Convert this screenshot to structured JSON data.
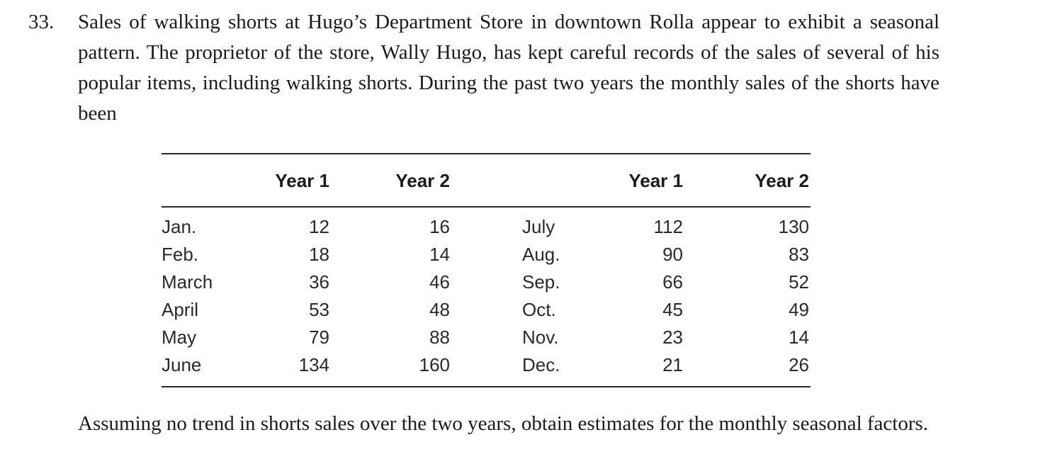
{
  "problem": {
    "number": "33.",
    "intro": "Sales of walking shorts at Hugo’s Department Store in downtown Rolla appear to exhibit a seasonal pattern. The proprietor of the store, Wally Hugo, has kept careful records of the sales of several of his popular items, including walking shorts. During the past two years the monthly sales of the shorts have been",
    "question": "Assuming no trend in shorts sales over the two years, obtain estimates for the monthly seasonal factors."
  },
  "table": {
    "headers": [
      "",
      "Year 1",
      "Year 2",
      "",
      "Year 1",
      "Year 2"
    ],
    "rows": [
      [
        "Jan.",
        "12",
        "16",
        "July",
        "112",
        "130"
      ],
      [
        "Feb.",
        "18",
        "14",
        "Aug.",
        "90",
        "83"
      ],
      [
        "March",
        "36",
        "46",
        "Sep.",
        "66",
        "52"
      ],
      [
        "April",
        "53",
        "48",
        "Oct.",
        "45",
        "49"
      ],
      [
        "May",
        "79",
        "88",
        "Nov.",
        "23",
        "14"
      ],
      [
        "June",
        "134",
        "160",
        "Dec.",
        "21",
        "26"
      ]
    ]
  }
}
